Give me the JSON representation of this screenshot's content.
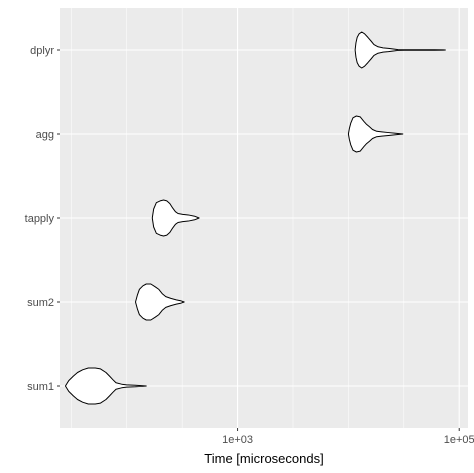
{
  "chart_data": {
    "type": "violin",
    "orientation": "horizontal",
    "xlabel": "Time [microseconds]",
    "ylabel": "",
    "x_scale": "log10",
    "xlim": [
      25,
      120000
    ],
    "x_ticks": [
      1000,
      100000
    ],
    "x_tick_labels": [
      "1e+03",
      "1e+05"
    ],
    "categories": [
      "sum1",
      "sum2",
      "tapply",
      "agg",
      "dplyr"
    ],
    "series": [
      {
        "category": "sum1",
        "min": 28,
        "max": 150,
        "profile": [
          [
            28,
            0.0
          ],
          [
            30,
            0.3
          ],
          [
            33,
            0.55
          ],
          [
            36,
            0.75
          ],
          [
            40,
            0.9
          ],
          [
            45,
            1.0
          ],
          [
            52,
            1.0
          ],
          [
            58,
            0.95
          ],
          [
            65,
            0.75
          ],
          [
            70,
            0.55
          ],
          [
            75,
            0.35
          ],
          [
            80,
            0.18
          ],
          [
            90,
            0.1
          ],
          [
            100,
            0.06
          ],
          [
            120,
            0.04
          ],
          [
            150,
            0.0
          ]
        ]
      },
      {
        "category": "sum2",
        "min": 120,
        "max": 330,
        "profile": [
          [
            120,
            0.0
          ],
          [
            125,
            0.4
          ],
          [
            130,
            0.7
          ],
          [
            140,
            0.9
          ],
          [
            150,
            1.0
          ],
          [
            165,
            1.0
          ],
          [
            180,
            0.85
          ],
          [
            195,
            0.7
          ],
          [
            210,
            0.45
          ],
          [
            225,
            0.3
          ],
          [
            250,
            0.2
          ],
          [
            280,
            0.12
          ],
          [
            310,
            0.06
          ],
          [
            330,
            0.0
          ]
        ]
      },
      {
        "category": "tapply",
        "min": 170,
        "max": 450,
        "profile": [
          [
            170,
            0.0
          ],
          [
            175,
            0.5
          ],
          [
            185,
            0.85
          ],
          [
            200,
            0.95
          ],
          [
            215,
            1.0
          ],
          [
            230,
            0.95
          ],
          [
            245,
            0.8
          ],
          [
            260,
            0.55
          ],
          [
            275,
            0.35
          ],
          [
            290,
            0.25
          ],
          [
            320,
            0.2
          ],
          [
            360,
            0.17
          ],
          [
            410,
            0.1
          ],
          [
            450,
            0.0
          ]
        ]
      },
      {
        "category": "agg",
        "min": 10000,
        "max": 31000,
        "profile": [
          [
            10000,
            0.0
          ],
          [
            10200,
            0.3
          ],
          [
            10500,
            0.6
          ],
          [
            11000,
            0.9
          ],
          [
            11800,
            1.0
          ],
          [
            12800,
            0.95
          ],
          [
            13800,
            0.7
          ],
          [
            14500,
            0.55
          ],
          [
            15500,
            0.4
          ],
          [
            16500,
            0.25
          ],
          [
            18000,
            0.15
          ],
          [
            20000,
            0.12
          ],
          [
            23000,
            0.08
          ],
          [
            26000,
            0.05
          ],
          [
            28000,
            0.03
          ],
          [
            31000,
            0.0
          ]
        ]
      },
      {
        "category": "dplyr",
        "min": 11500,
        "max": 75000,
        "profile": [
          [
            11500,
            0.0
          ],
          [
            11700,
            0.4
          ],
          [
            12000,
            0.7
          ],
          [
            12500,
            0.9
          ],
          [
            13200,
            1.0
          ],
          [
            14000,
            0.9
          ],
          [
            15000,
            0.7
          ],
          [
            16000,
            0.5
          ],
          [
            17000,
            0.3
          ],
          [
            18500,
            0.18
          ],
          [
            20500,
            0.12
          ],
          [
            23000,
            0.09
          ],
          [
            26000,
            0.05
          ],
          [
            28000,
            0.02
          ],
          [
            32000,
            0.015
          ],
          [
            45000,
            0.012
          ],
          [
            60000,
            0.012
          ],
          [
            72000,
            0.01
          ],
          [
            75000,
            0.0
          ]
        ]
      }
    ],
    "grid": true,
    "panel_background": "#ebebeb",
    "grid_color": "#ffffff",
    "violin_stroke": "#000000",
    "violin_fill": "#ffffff"
  }
}
